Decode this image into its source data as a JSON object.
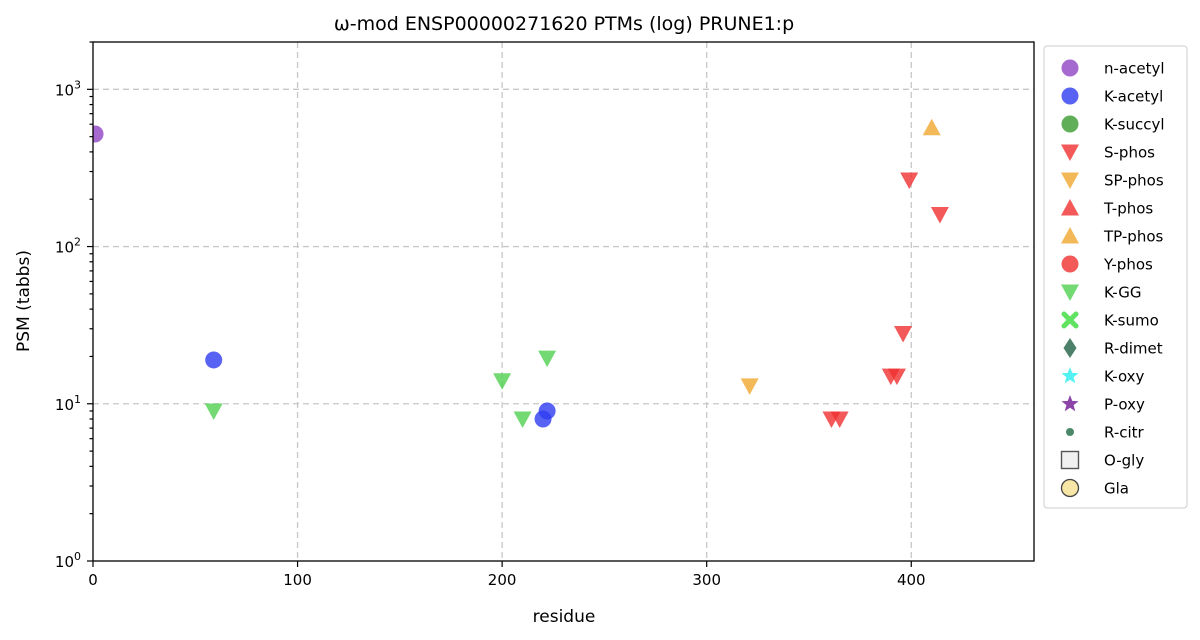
{
  "chart_data": {
    "type": "scatter",
    "title": "ω-mod ENSP00000271620 PTMs (log) PRUNE1:p",
    "xlabel": "residue",
    "ylabel": "PSM (tabbs)",
    "xlim": [
      0,
      460
    ],
    "ylim": [
      1,
      2000
    ],
    "yscale": "log",
    "grid": true,
    "legend_position": "outside-right",
    "x_ticks": [
      {
        "value": 0,
        "label": "0"
      },
      {
        "value": 100,
        "label": "100"
      },
      {
        "value": 200,
        "label": "200"
      },
      {
        "value": 300,
        "label": "300"
      },
      {
        "value": 400,
        "label": "400"
      }
    ],
    "y_ticks": [
      {
        "value": 1,
        "base": "10",
        "exp": "0"
      },
      {
        "value": 10,
        "base": "10",
        "exp": "1"
      },
      {
        "value": 100,
        "base": "10",
        "exp": "2"
      },
      {
        "value": 1000,
        "base": "10",
        "exp": "3"
      }
    ],
    "series": [
      {
        "name": "n-acetyl",
        "marker": "circle",
        "color": "#8e44c4",
        "points": [
          {
            "x": 1,
            "y": 520
          }
        ]
      },
      {
        "name": "K-acetyl",
        "marker": "circle",
        "color": "#2e3cf0",
        "points": [
          {
            "x": 59,
            "y": 19
          },
          {
            "x": 220,
            "y": 8
          },
          {
            "x": 222,
            "y": 9
          }
        ]
      },
      {
        "name": "K-succyl",
        "marker": "circle",
        "color": "#3a9a2e",
        "points": []
      },
      {
        "name": "S-phos",
        "marker": "triangle-down",
        "color": "#f03030",
        "points": [
          {
            "x": 361,
            "y": 8
          },
          {
            "x": 365,
            "y": 8
          },
          {
            "x": 390,
            "y": 15
          },
          {
            "x": 393,
            "y": 15
          },
          {
            "x": 396,
            "y": 28
          },
          {
            "x": 399,
            "y": 265
          },
          {
            "x": 414,
            "y": 160
          }
        ]
      },
      {
        "name": "SP-phos",
        "marker": "triangle-down",
        "color": "#f0a830",
        "points": [
          {
            "x": 321,
            "y": 13
          }
        ]
      },
      {
        "name": "T-phos",
        "marker": "triangle-up",
        "color": "#f03030",
        "points": []
      },
      {
        "name": "TP-phos",
        "marker": "triangle-up",
        "color": "#f0a830",
        "points": [
          {
            "x": 410,
            "y": 570
          }
        ]
      },
      {
        "name": "Y-phos",
        "marker": "circle",
        "color": "#f03030",
        "points": []
      },
      {
        "name": "K-GG",
        "marker": "triangle-down",
        "color": "#50d050",
        "points": [
          {
            "x": 59,
            "y": 9
          },
          {
            "x": 200,
            "y": 14
          },
          {
            "x": 210,
            "y": 8
          },
          {
            "x": 222,
            "y": 19.5
          }
        ]
      },
      {
        "name": "K-sumo",
        "marker": "x",
        "color": "#50e050",
        "points": []
      },
      {
        "name": "R-dimet",
        "marker": "diamond",
        "color": "#2e6a50",
        "points": []
      },
      {
        "name": "K-oxy",
        "marker": "star",
        "color": "#40f0f0",
        "points": []
      },
      {
        "name": "P-oxy",
        "marker": "star",
        "color": "#8030a0",
        "points": []
      },
      {
        "name": "R-citr",
        "marker": "small-circle",
        "color": "#3a7a5a",
        "points": []
      },
      {
        "name": "O-gly",
        "marker": "square-open",
        "color": "#555555",
        "points": []
      },
      {
        "name": "Gla",
        "marker": "circle-open",
        "color": "#f4dc80",
        "points": []
      }
    ]
  }
}
